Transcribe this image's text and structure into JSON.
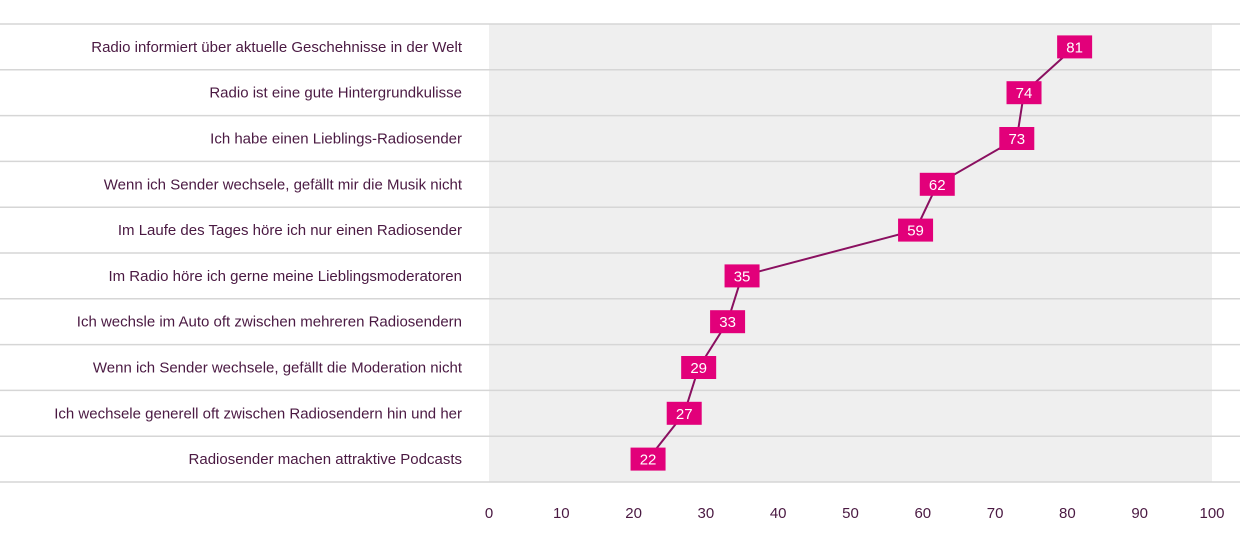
{
  "chart_data": {
    "type": "line",
    "orientation": "horizontal",
    "categories": [
      "Radio informiert über aktuelle Geschehnisse in der Welt",
      "Radio ist eine gute Hintergrundkulisse",
      "Ich habe einen Lieblings-Radiosender",
      "Wenn ich Sender wechsele, gefällt mir die Musik nicht",
      "Im Laufe des Tages höre ich nur einen Radiosender",
      "Im Radio höre ich gerne meine Lieblingsmoderatoren",
      "Ich wechsle im Auto oft zwischen mehreren Radiosendern",
      "Wenn ich Sender wechsele, gefällt die Moderation nicht",
      "Ich wechsele generell oft zwischen Radiosendern hin und her",
      "Radiosender machen attraktive Podcasts"
    ],
    "values": [
      81,
      74,
      73,
      62,
      59,
      35,
      33,
      29,
      27,
      22
    ],
    "xlim": [
      0,
      100
    ],
    "xticks": [
      0,
      10,
      20,
      30,
      40,
      50,
      60,
      70,
      80,
      90,
      100
    ],
    "title": "",
    "xlabel": "",
    "ylabel": "",
    "grid": true,
    "legend": "none",
    "colors": {
      "marker": "#e2007a",
      "line": "#8a1060",
      "label_text": "#4a1942",
      "plot_background": "#efefef",
      "grid": "#d6d6d6"
    }
  }
}
